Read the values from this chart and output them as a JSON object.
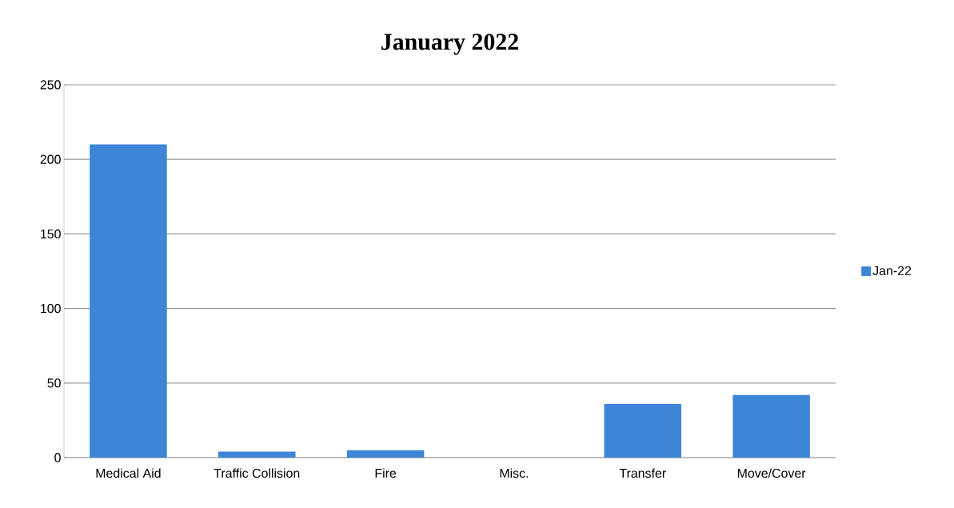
{
  "chart_data": {
    "type": "bar",
    "title": "January 2022",
    "categories": [
      "Medical Aid",
      "Traffic Collision",
      "Fire",
      "Misc.",
      "Transfer",
      "Move/Cover"
    ],
    "series": [
      {
        "name": "Jan-22",
        "color": "#3d85d6",
        "values": [
          210,
          4,
          5,
          0,
          36,
          42
        ]
      }
    ],
    "ylim": [
      0,
      250
    ],
    "yticks": [
      0,
      50,
      100,
      150,
      200,
      250
    ],
    "grid": "y",
    "legend": "right"
  }
}
